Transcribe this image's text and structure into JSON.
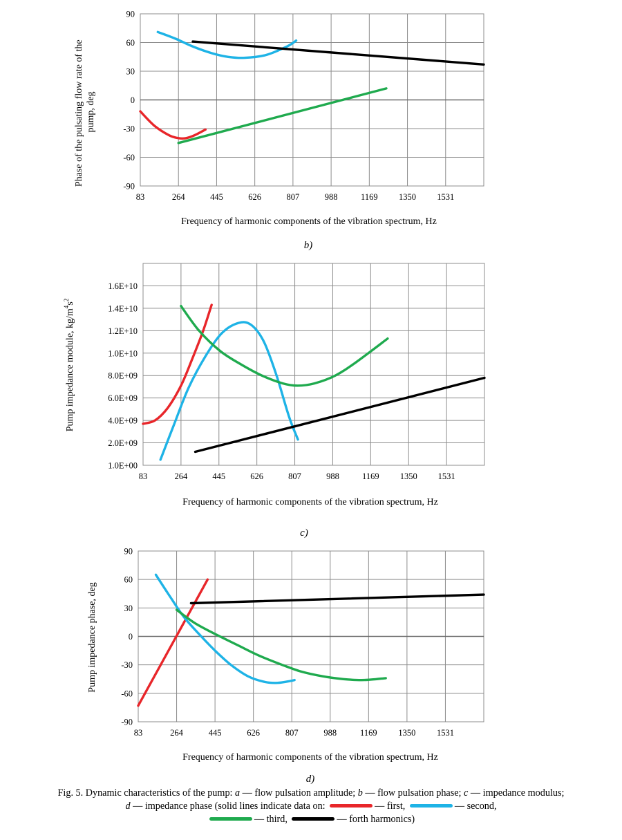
{
  "chart_data": [
    {
      "panel": "b)",
      "type": "line",
      "ylabel": "Phase of the pulsating flow rate of the pump, deg",
      "xlabel": "Frequency of harmonic components of the vibration spectrum, Hz",
      "xticks": [
        "83",
        "264",
        "445",
        "626",
        "807",
        "988",
        "1169",
        "1350",
        "1531"
      ],
      "yticks": [
        "90",
        "60",
        "30",
        "0",
        "-30",
        "-60",
        "-90"
      ],
      "xlim": [
        83,
        1712
      ],
      "ylim": [
        -90,
        90
      ],
      "grid": true,
      "series": [
        {
          "color": "#e8262a",
          "x": [
            83,
            150,
            220,
            264,
            300,
            340,
            392
          ],
          "y": [
            -12,
            -27,
            -37,
            -40,
            -40,
            -37,
            -31
          ]
        },
        {
          "color": "#1eb3e6",
          "x": [
            166,
            250,
            330,
            420,
            500,
            580,
            680,
            780,
            822
          ],
          "y": [
            71,
            64,
            56,
            49,
            45,
            44,
            47,
            56,
            62
          ]
        },
        {
          "color": "#1faa4e",
          "x": [
            264,
            1250
          ],
          "y": [
            -45,
            12
          ]
        },
        {
          "color": "#000000",
          "x": [
            332,
            1712
          ],
          "y": [
            61,
            37
          ]
        }
      ]
    },
    {
      "panel": "c)",
      "type": "line",
      "ylabel": "Pump impedance module, kg/m4s2",
      "xlabel": "Frequency of harmonic components of the vibration spectrum, Hz",
      "xticks": [
        "83",
        "264",
        "445",
        "626",
        "807",
        "988",
        "1169",
        "1350",
        "1531"
      ],
      "yticks": [
        "1.6E+10",
        "1.4E+10",
        "1.2E+10",
        "1.0E+10",
        "8.0E+09",
        "6.0E+09",
        "4.0E+09",
        "2.0E+09",
        "1.0E+00"
      ],
      "xlim": [
        83,
        1712
      ],
      "ylim": [
        0,
        18000000000
      ],
      "ytick_values": [
        16000000000,
        14000000000,
        12000000000,
        10000000000,
        8000000000,
        6000000000,
        4000000000,
        2000000000,
        0
      ],
      "grid": true,
      "series": [
        {
          "color": "#e8262a",
          "x": [
            83,
            140,
            200,
            264,
            320,
            370,
            410
          ],
          "y": [
            3700000000,
            4000000000,
            5100000000,
            7100000000,
            9600000000,
            12000000000,
            14300000000
          ]
        },
        {
          "color": "#1eb3e6",
          "x": [
            166,
            230,
            300,
            380,
            460,
            540,
            600,
            660,
            720,
            780,
            822
          ],
          "y": [
            500000000,
            3600000000,
            6900000000,
            9700000000,
            11800000000,
            12700000000,
            12500000000,
            11000000000,
            8000000000,
            4300000000,
            2300000000
          ]
        },
        {
          "color": "#1faa4e",
          "x": [
            264,
            350,
            450,
            550,
            650,
            750,
            820,
            900,
            1000,
            1100,
            1250
          ],
          "y": [
            14200000000,
            12000000000,
            10200000000,
            9000000000,
            8000000000,
            7300000000,
            7100000000,
            7300000000,
            8000000000,
            9200000000,
            11300000000
          ]
        },
        {
          "color": "#000000",
          "x": [
            332,
            1712
          ],
          "y": [
            1200000000,
            7800000000
          ]
        }
      ]
    },
    {
      "panel": "d)",
      "type": "line",
      "ylabel": "Pump impedance phase, deg",
      "xlabel": "Frequency of harmonic components of the vibration spectrum, Hz",
      "xticks": [
        "83",
        "264",
        "445",
        "626",
        "807",
        "988",
        "1169",
        "1350",
        "1531"
      ],
      "yticks": [
        "90",
        "60",
        "30",
        "0",
        "-30",
        "-60",
        "-90"
      ],
      "xlim": [
        83,
        1712
      ],
      "ylim": [
        -90,
        90
      ],
      "grid": true,
      "series": [
        {
          "color": "#e8262a",
          "x": [
            83,
            410
          ],
          "y": [
            -73,
            60
          ]
        },
        {
          "color": "#1eb3e6",
          "x": [
            166,
            230,
            300,
            380,
            450,
            520,
            600,
            680,
            740,
            800,
            820
          ],
          "y": [
            65,
            43,
            20,
            0,
            -16,
            -30,
            -42,
            -48,
            -49,
            -47,
            -46
          ]
        },
        {
          "color": "#1faa4e",
          "x": [
            264,
            350,
            450,
            550,
            650,
            750,
            850,
            950,
            1050,
            1150,
            1250
          ],
          "y": [
            28,
            14,
            2,
            -9,
            -20,
            -29,
            -37,
            -42,
            -45,
            -46,
            -44
          ]
        },
        {
          "color": "#000000",
          "x": [
            332,
            1712
          ],
          "y": [
            35,
            44
          ]
        }
      ]
    }
  ],
  "panels": {
    "b": {
      "ylabel_line1": "Phase of the pulsating flow rate of the",
      "ylabel_line2": "pump, deg",
      "xlabel": "Frequency of harmonic components of the vibration spectrum, Hz",
      "letter": "b)"
    },
    "c": {
      "ylabel_main": "Pump impedance module, kg/m",
      "ylabel_sup1": "4",
      "ylabel_mid": "s",
      "ylabel_sup2": "2",
      "xlabel": "Frequency of harmonic components of the vibration spectrum, Hz",
      "letter": "c)"
    },
    "d": {
      "ylabel": "Pump impedance phase, deg",
      "xlabel": "Frequency of harmonic components of the vibration spectrum, Hz",
      "letter": "d)"
    }
  },
  "caption": {
    "line1_prefix": "Fig. 5. Dynamic characteristics of the pump: ",
    "a_letter": "a",
    "a_text": " — flow pulsation amplitude; ",
    "b_letter": "b",
    "b_text": " — flow pulsation phase; ",
    "c_letter": "c",
    "c_text": " — impedance modulus;",
    "d_letter": "d",
    "d_text": " — impedance phase (solid lines indicate data on: ",
    "first": "— first,",
    "second": "— second,",
    "third": "— third,",
    "fourth": "— forth harmonics)"
  }
}
